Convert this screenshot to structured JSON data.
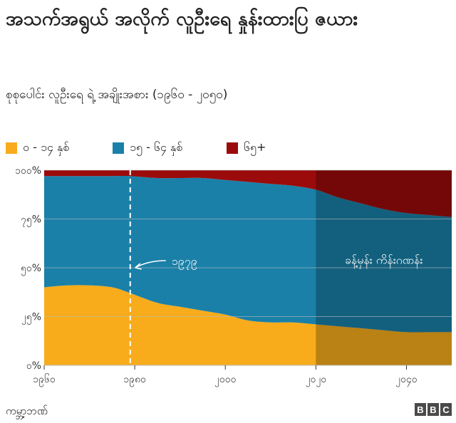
{
  "title": "အသက်အရွယ် အလိုက် လူဦးရေ နှုန်းထားပြ ဇယား",
  "subtitle": "စုစုပေါင်း လူဦးရေ ရဲ့ အချိုးအစား (၁၉၆၀ - ၂၀၅၀)",
  "source": "ကမ္ဘာ့ဘဏ်",
  "logo": [
    "B",
    "B",
    "C"
  ],
  "colors": {
    "young": "#f8ac1b",
    "middle": "#1a80a8",
    "old": "#9b0b0b",
    "grid": "#bbbbbb"
  },
  "chart_data": {
    "type": "area",
    "stacked": true,
    "x": [
      1960,
      1965,
      1970,
      1975,
      1979,
      1985,
      1990,
      1995,
      2000,
      2005,
      2010,
      2015,
      2020,
      2025,
      2030,
      2035,
      2040,
      2045,
      2050
    ],
    "series": [
      {
        "name": "၀ - ၁၄ နှစ်",
        "key": "young",
        "values": [
          40,
          41,
          41,
          40,
          37,
          32,
          30,
          28,
          26,
          23,
          22,
          22,
          21,
          20,
          19,
          18,
          17,
          17,
          17
        ]
      },
      {
        "name": "၁၅ - ၆၄ နှစ်",
        "key": "middle",
        "values": [
          57,
          56,
          56,
          57,
          60,
          64,
          66,
          68,
          69,
          71,
          71,
          70,
          69,
          66,
          64,
          62,
          61,
          60,
          59
        ]
      },
      {
        "name": "၆၅+",
        "key": "old",
        "values": [
          3,
          3,
          3,
          3,
          3,
          4,
          4,
          4,
          5,
          6,
          7,
          8,
          10,
          14,
          17,
          20,
          22,
          23,
          24
        ]
      }
    ],
    "xlim": [
      1960,
      2050
    ],
    "ylim": [
      0,
      100
    ],
    "xticks": [
      1960,
      1980,
      2000,
      2020,
      2040
    ],
    "xtick_labels": [
      "၁၉၆၀",
      "၁၉၈၀",
      "၂၀၀၀",
      "၂၀၂၀",
      "၂၀၄၀"
    ],
    "yticks": [
      0,
      25,
      50,
      75,
      100
    ],
    "ytick_labels": [
      "၀%",
      "၂၅%",
      "၅၀%",
      "၇၅%",
      "၁၀၀%"
    ],
    "grid": true,
    "legend_position": "top-left",
    "annotations": [
      {
        "kind": "dashed-vline",
        "x": 1979,
        "label": "၁၉၇၉",
        "label_y": 50
      },
      {
        "kind": "shaded-region",
        "x_start": 2020,
        "x_end": 2050,
        "label": "ခန့်မှန်း ကိန်းဂဏန်း",
        "label_y": 52
      }
    ]
  }
}
